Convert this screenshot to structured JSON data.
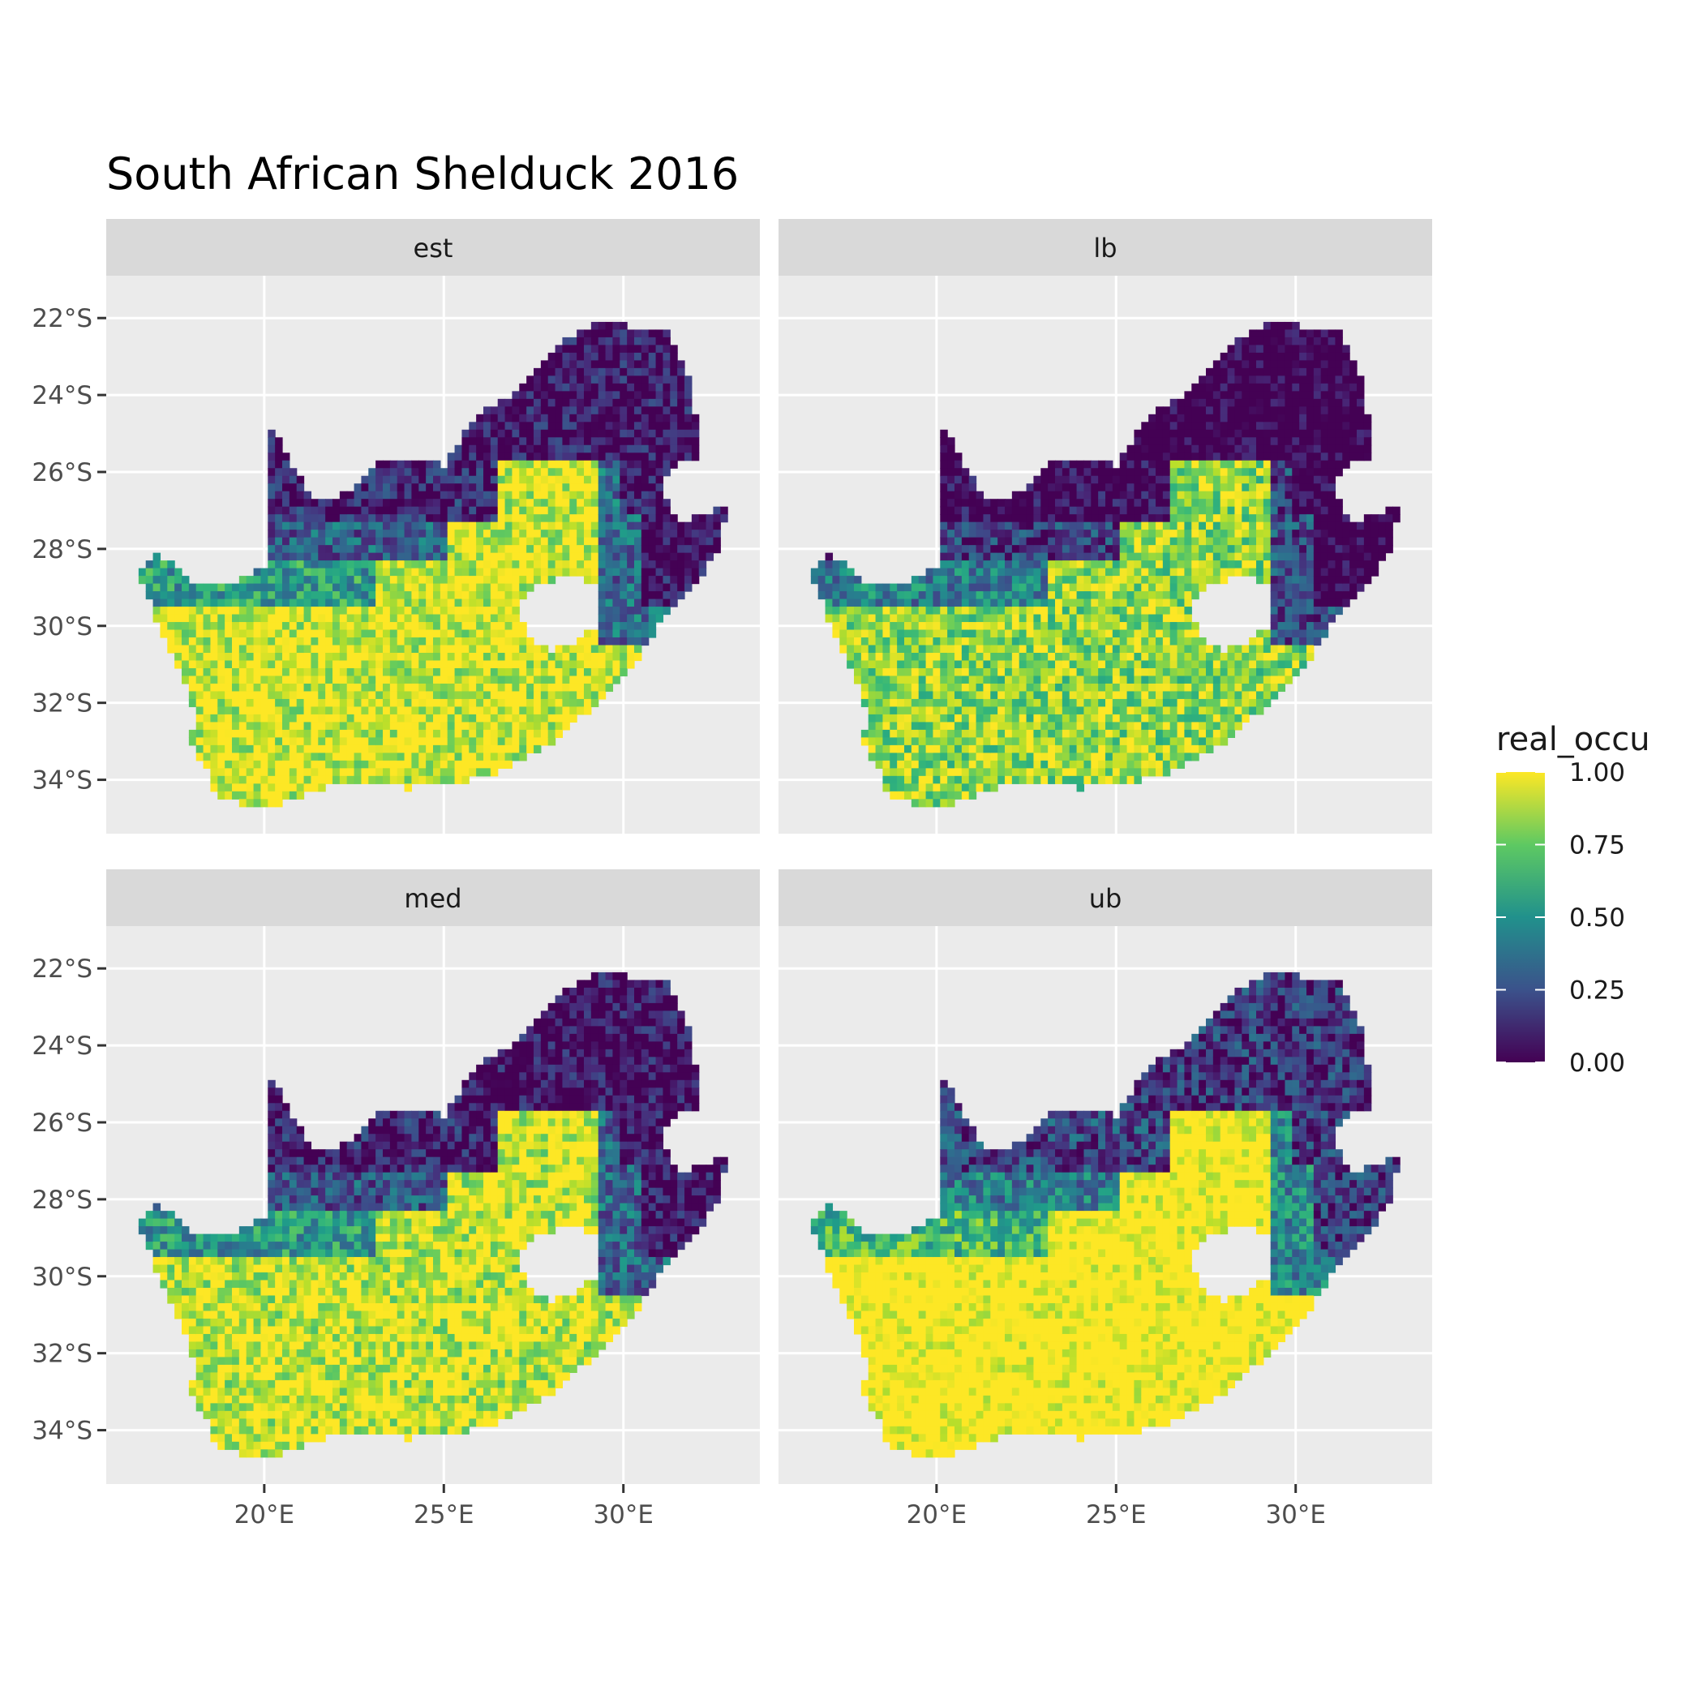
{
  "title": "South African Shelduck 2016",
  "chart_data": {
    "type": "heatmap",
    "title": "South African Shelduck 2016",
    "xlabel": "",
    "ylabel": "",
    "x_ticks": [
      {
        "value": 20,
        "label": "20°E"
      },
      {
        "value": 25,
        "label": "25°E"
      },
      {
        "value": 30,
        "label": "30°E"
      }
    ],
    "y_ticks": [
      {
        "value": -22,
        "label": "22°S"
      },
      {
        "value": -24,
        "label": "24°S"
      },
      {
        "value": -26,
        "label": "26°S"
      },
      {
        "value": -28,
        "label": "28°S"
      },
      {
        "value": -30,
        "label": "30°S"
      },
      {
        "value": -32,
        "label": "32°S"
      },
      {
        "value": -34,
        "label": "34°S"
      }
    ],
    "xlim": [
      15.6,
      33.8
    ],
    "ylim": [
      -35.4,
      -20.9
    ],
    "grid": true,
    "panels": [
      {
        "label": "est",
        "occupancy_summary": "high (yellow) across western, central and southern interior; low (purple) in north-east"
      },
      {
        "label": "lb",
        "occupancy_summary": "similar to est with more mid-range green/teal values in west"
      },
      {
        "label": "med",
        "occupancy_summary": "similar to est"
      },
      {
        "label": "ub",
        "occupancy_summary": "highest overall; broad yellow across south and centre"
      }
    ],
    "legend": {
      "title": "real_occu",
      "position": "right",
      "range": [
        0,
        1
      ],
      "breaks": [
        {
          "value": 1.0,
          "label": "1.00"
        },
        {
          "value": 0.75,
          "label": "0.75"
        },
        {
          "value": 0.5,
          "label": "0.50"
        },
        {
          "value": 0.25,
          "label": "0.25"
        },
        {
          "value": 0.0,
          "label": "0.00"
        }
      ],
      "colors": [
        "#440154",
        "#3b528b",
        "#21918c",
        "#5ec962",
        "#fde725"
      ]
    }
  }
}
